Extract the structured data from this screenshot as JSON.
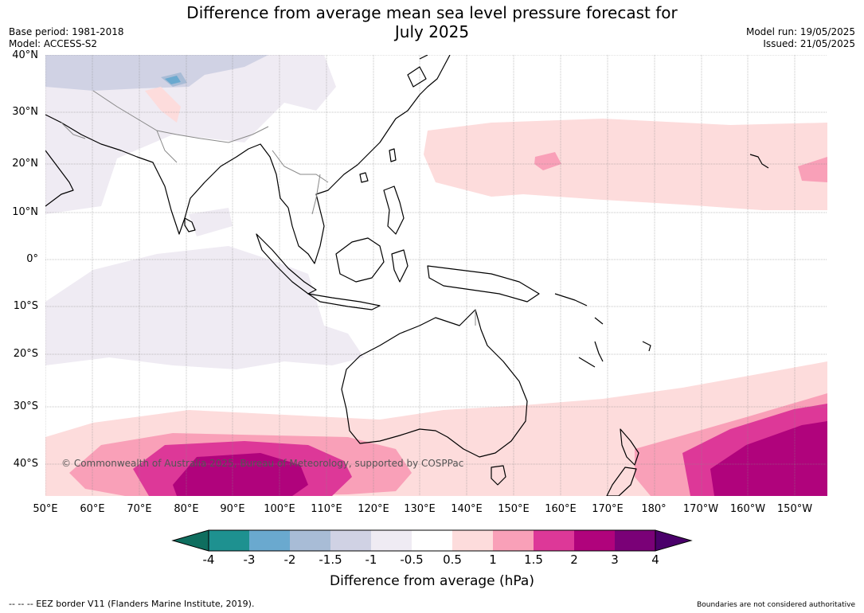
{
  "header": {
    "title_line1": "Difference from average mean sea level pressure forecast for",
    "title_line2": "July 2025",
    "base_period": "Base period: 1981-2018",
    "model": "Model: ACCESS-S2",
    "model_run": "Model run: 19/05/2025",
    "issued": "Issued: 21/05/2025"
  },
  "map": {
    "lat_labels": [
      "40°N",
      "30°N",
      "20°N",
      "10°N",
      "0°",
      "10°S",
      "20°S",
      "30°S",
      "40°S"
    ],
    "lon_labels": [
      "50°E",
      "60°E",
      "70°E",
      "80°E",
      "90°E",
      "100°E",
      "110°E",
      "120°E",
      "130°E",
      "140°E",
      "150°E",
      "160°E",
      "170°E",
      "180°",
      "170°W",
      "160°W",
      "150°W"
    ],
    "copyright": "© Commonwealth of Australia 2025, Bureau of Meteorology, supported by COSPPac"
  },
  "colorbar": {
    "colors": [
      "#0f6e5f",
      "#1e9190",
      "#6aa9cf",
      "#a8bcd6",
      "#d0d2e4",
      "#efebf3",
      "#ffffff",
      "#fddcdc",
      "#f9a0b8",
      "#dd3898",
      "#b0037c",
      "#7a0177",
      "#4a006a"
    ],
    "ticks": [
      "-4",
      "-3",
      "-2",
      "-1.5",
      "-1",
      "-0.5",
      "0.5",
      "1",
      "1.5",
      "2",
      "3",
      "4"
    ],
    "label": "Difference from average (hPa)"
  },
  "footer": {
    "eez": "--  --  -- EEZ border V11 (Flanders Marine Institute, 2019).",
    "boundaries": "Boundaries are not considered authoritative"
  }
}
